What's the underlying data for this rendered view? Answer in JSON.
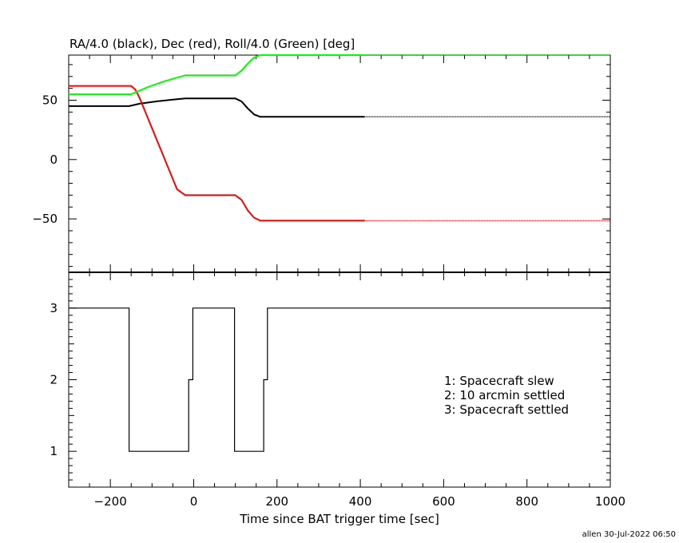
{
  "footer": "allen 30-Jul-2022 06:50",
  "chart_data": [
    {
      "type": "line",
      "title": "RA/4.0 (black), Dec (red), Roll/4.0 (Green) [deg]",
      "xlim": [
        -300,
        1000
      ],
      "ylim": [
        -95,
        88
      ],
      "yticks": [
        50,
        0,
        -50
      ],
      "ytick_labels": [
        "50",
        "0",
        "−50"
      ],
      "series": [
        {
          "color": "#000000",
          "solid": [
            [
              -300,
              45
            ],
            [
              -155,
              45
            ],
            [
              -130,
              47
            ],
            [
              -90,
              49
            ],
            [
              -50,
              50.5
            ],
            [
              -20,
              51.5
            ],
            [
              100,
              51.5
            ],
            [
              115,
              49
            ],
            [
              130,
              43
            ],
            [
              145,
              38
            ],
            [
              160,
              36
            ],
            [
              410,
              36
            ]
          ],
          "dotted": [
            [
              410,
              36
            ],
            [
              1000,
              36
            ]
          ]
        },
        {
          "color": "#ff0000",
          "solid": [
            [
              -300,
              62
            ],
            [
              -150,
              62
            ],
            [
              -140,
              59
            ],
            [
              -130,
              52
            ],
            [
              -40,
              -25
            ],
            [
              -20,
              -30
            ],
            [
              100,
              -30
            ],
            [
              115,
              -34
            ],
            [
              130,
              -43
            ],
            [
              145,
              -49
            ],
            [
              160,
              -51.5
            ],
            [
              410,
              -51.5
            ]
          ],
          "dotted": [
            [
              410,
              -51.5
            ],
            [
              1000,
              -51.5
            ]
          ]
        },
        {
          "color": "#00ff00",
          "solid": [
            [
              -300,
              55
            ],
            [
              -150,
              55
            ],
            [
              -140,
              56.5
            ],
            [
              -110,
              61
            ],
            [
              -70,
              66
            ],
            [
              -30,
              70
            ],
            [
              -20,
              71
            ],
            [
              100,
              71
            ],
            [
              115,
              75
            ],
            [
              130,
              81
            ],
            [
              145,
              86
            ],
            [
              160,
              88
            ],
            [
              410,
              88
            ]
          ],
          "dotted": [
            [
              410,
              88
            ],
            [
              1000,
              88
            ]
          ]
        }
      ]
    },
    {
      "type": "line",
      "xlabel": "Time since BAT trigger time [sec]",
      "xlim": [
        -300,
        1000
      ],
      "ylim": [
        0.5,
        3.5
      ],
      "xticks": [
        -200,
        0,
        200,
        400,
        600,
        800,
        1000
      ],
      "xtick_labels": [
        "−200",
        "0",
        "200",
        "400",
        "600",
        "800",
        "1000"
      ],
      "yticks": [
        3,
        2,
        1
      ],
      "ytick_labels": [
        "3",
        "2",
        "1"
      ],
      "legend": [
        "1: Spacecraft slew",
        "2: 10 arcmin settled",
        "3: Spacecraft settled"
      ],
      "series": [
        {
          "color": "#000000",
          "step": [
            [
              -300,
              3
            ],
            [
              -155,
              3
            ],
            [
              -155,
              1
            ],
            [
              -12,
              1
            ],
            [
              -12,
              2
            ],
            [
              -2,
              2
            ],
            [
              -2,
              3
            ],
            [
              98,
              3
            ],
            [
              98,
              1
            ],
            [
              168,
              1
            ],
            [
              168,
              2
            ],
            [
              177,
              2
            ],
            [
              177,
              3
            ],
            [
              1000,
              3
            ]
          ]
        }
      ]
    }
  ]
}
